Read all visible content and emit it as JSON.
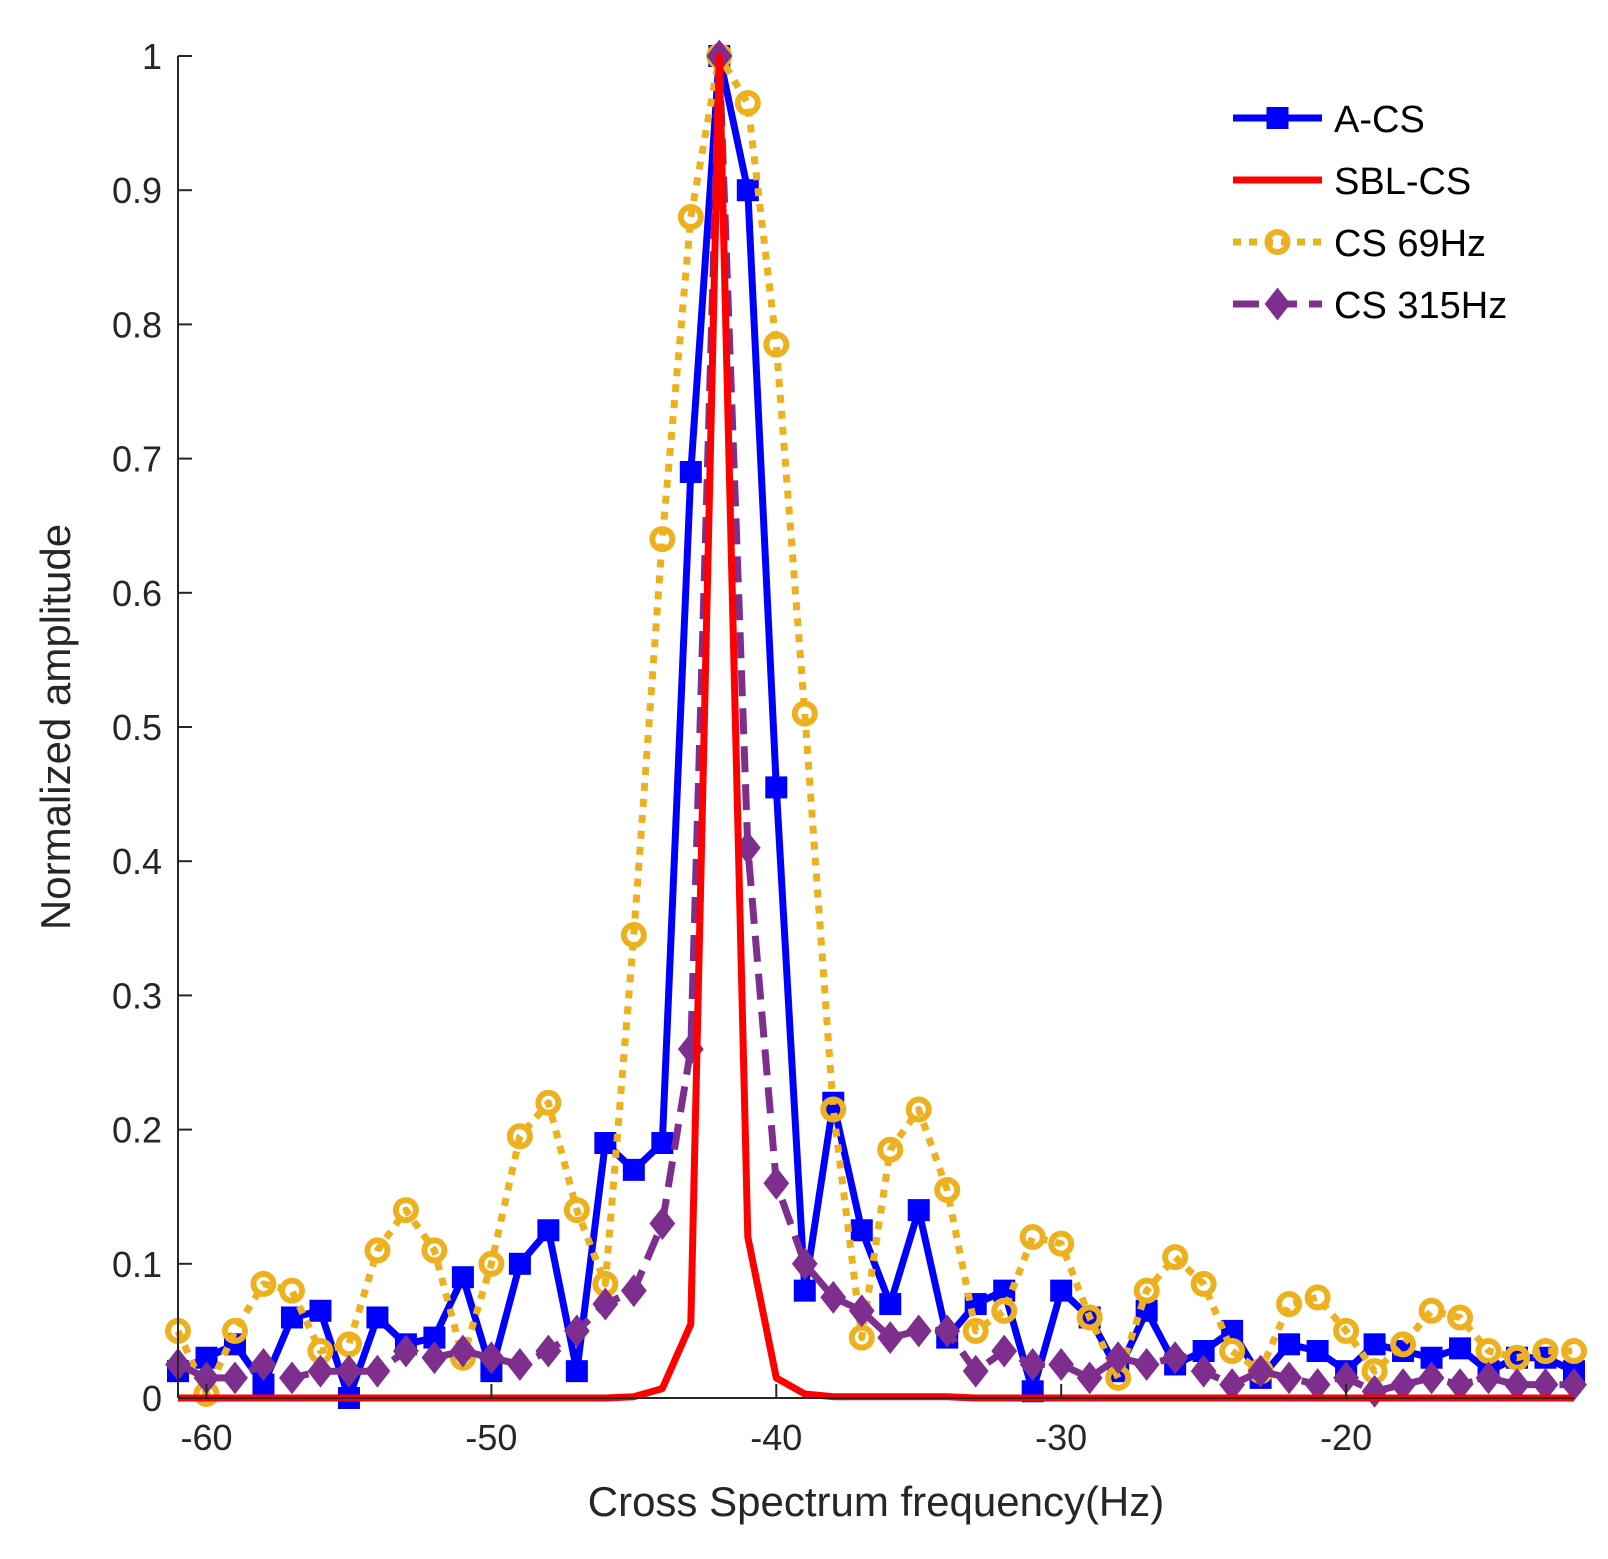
{
  "chart_data": {
    "type": "line",
    "title": "",
    "xlabel": "Cross Spectrum frequency(Hz)",
    "ylabel": "Normalized amplitude",
    "xlim": [
      -61,
      -12
    ],
    "ylim": [
      0,
      1
    ],
    "xticks": [
      -60,
      -50,
      -40,
      -30,
      -20
    ],
    "xtick_labels": [
      "-60",
      "-50",
      "-40",
      "-30",
      "-20"
    ],
    "yticks": [
      0,
      0.1,
      0.2,
      0.3,
      0.4,
      0.5,
      0.6,
      0.7,
      0.8,
      0.9,
      1
    ],
    "ytick_labels": [
      "0",
      "0.1",
      "0.2",
      "0.3",
      "0.4",
      "0.5",
      "0.6",
      "0.7",
      "0.8",
      "0.9",
      "1"
    ],
    "grid": false,
    "legend_position": "top-right",
    "series": [
      {
        "name": "A-CS",
        "color": "#0000ff",
        "line_style": "solid",
        "marker": "square",
        "x": [
          -61,
          -60,
          -59,
          -58,
          -57,
          -56,
          -55,
          -54,
          -53,
          -52,
          -51,
          -50,
          -49,
          -48,
          -47,
          -46,
          -45,
          -44,
          -43,
          -42,
          -41,
          -40,
          -39,
          -38,
          -37,
          -36,
          -35,
          -34,
          -33,
          -32,
          -31,
          -30,
          -29,
          -28,
          -27,
          -26,
          -25,
          -24,
          -23,
          -22,
          -21,
          -20,
          -19,
          -18,
          -17,
          -16,
          -15,
          -14,
          -13,
          -12
        ],
        "y": [
          0.02,
          0.03,
          0.04,
          0.01,
          0.06,
          0.065,
          0.0,
          0.06,
          0.04,
          0.045,
          0.09,
          0.02,
          0.1,
          0.125,
          0.02,
          0.19,
          0.17,
          0.19,
          0.69,
          1.0,
          0.9,
          0.455,
          0.08,
          0.22,
          0.125,
          0.07,
          0.14,
          0.045,
          0.07,
          0.08,
          0.005,
          0.08,
          0.06,
          0.02,
          0.065,
          0.025,
          0.035,
          0.05,
          0.015,
          0.04,
          0.035,
          0.02,
          0.04,
          0.035,
          0.03,
          0.037,
          0.02,
          0.03,
          0.03,
          0.02
        ]
      },
      {
        "name": "SBL-CS",
        "color": "#ff0000",
        "line_style": "solid",
        "marker": "none",
        "x": [
          -61,
          -60,
          -59,
          -58,
          -57,
          -56,
          -55,
          -54,
          -53,
          -52,
          -51,
          -50,
          -49,
          -48,
          -47,
          -46,
          -45,
          -44,
          -43,
          -42,
          -41,
          -40,
          -39,
          -38,
          -37,
          -36,
          -35,
          -34,
          -33,
          -32,
          -31,
          -30,
          -29,
          -28,
          -27,
          -26,
          -25,
          -24,
          -23,
          -22,
          -21,
          -20,
          -19,
          -18,
          -17,
          -16,
          -15,
          -14,
          -13,
          -12
        ],
        "y": [
          0,
          0,
          0,
          0,
          0,
          0,
          0,
          0,
          0,
          0,
          0,
          0,
          0,
          0,
          0,
          0,
          0.001,
          0.007,
          0.055,
          1.0,
          0.12,
          0.015,
          0.003,
          0.001,
          0.001,
          0.001,
          0.001,
          0.001,
          0,
          0,
          0,
          0,
          0,
          0,
          0,
          0,
          0,
          0,
          0,
          0,
          0,
          0,
          0,
          0,
          0,
          0,
          0,
          0,
          0,
          0
        ]
      },
      {
        "name": "CS 69Hz",
        "color": "#edb120",
        "line_style": "dotted",
        "marker": "circle",
        "x": [
          -61,
          -60,
          -59,
          -58,
          -57,
          -56,
          -55,
          -54,
          -53,
          -52,
          -51,
          -50,
          -49,
          -48,
          -47,
          -46,
          -45,
          -44,
          -43,
          -42,
          -41,
          -40,
          -39,
          -38,
          -37,
          -36,
          -35,
          -34,
          -33,
          -32,
          -31,
          -30,
          -29,
          -28,
          -27,
          -26,
          -25,
          -24,
          -23,
          -22,
          -21,
          -20,
          -19,
          -18,
          -17,
          -16,
          -15,
          -14,
          -13,
          -12
        ],
        "y": [
          0.05,
          0.003,
          0.05,
          0.085,
          0.08,
          0.035,
          0.04,
          0.11,
          0.14,
          0.11,
          0.03,
          0.1,
          0.195,
          0.22,
          0.14,
          0.085,
          0.345,
          0.64,
          0.88,
          1.0,
          0.965,
          0.785,
          0.51,
          0.215,
          0.045,
          0.185,
          0.215,
          0.155,
          0.05,
          0.065,
          0.12,
          0.115,
          0.06,
          0.015,
          0.08,
          0.105,
          0.085,
          0.035,
          0.02,
          0.07,
          0.075,
          0.05,
          0.02,
          0.04,
          0.065,
          0.06,
          0.035,
          0.03,
          0.035,
          0.035
        ]
      },
      {
        "name": "CS 315Hz",
        "color": "#7e2f8e",
        "line_style": "dashed",
        "marker": "diamond",
        "x": [
          -61,
          -60,
          -59,
          -58,
          -57,
          -56,
          -55,
          -54,
          -53,
          -52,
          -51,
          -50,
          -49,
          -48,
          -47,
          -46,
          -45,
          -44,
          -43,
          -42,
          -41,
          -40,
          -39,
          -38,
          -37,
          -36,
          -35,
          -34,
          -33,
          -32,
          -31,
          -30,
          -29,
          -28,
          -27,
          -26,
          -25,
          -24,
          -23,
          -22,
          -21,
          -20,
          -19,
          -18,
          -17,
          -16,
          -15,
          -14,
          -13,
          -12
        ],
        "y": [
          0.025,
          0.015,
          0.015,
          0.025,
          0.015,
          0.02,
          0.02,
          0.02,
          0.035,
          0.03,
          0.035,
          0.03,
          0.025,
          0.035,
          0.05,
          0.07,
          0.08,
          0.13,
          0.26,
          1.0,
          0.41,
          0.16,
          0.1,
          0.075,
          0.065,
          0.045,
          0.05,
          0.05,
          0.02,
          0.035,
          0.025,
          0.025,
          0.015,
          0.03,
          0.025,
          0.03,
          0.02,
          0.01,
          0.02,
          0.015,
          0.01,
          0.015,
          0.005,
          0.01,
          0.015,
          0.01,
          0.015,
          0.01,
          0.01,
          0.01
        ]
      }
    ]
  }
}
